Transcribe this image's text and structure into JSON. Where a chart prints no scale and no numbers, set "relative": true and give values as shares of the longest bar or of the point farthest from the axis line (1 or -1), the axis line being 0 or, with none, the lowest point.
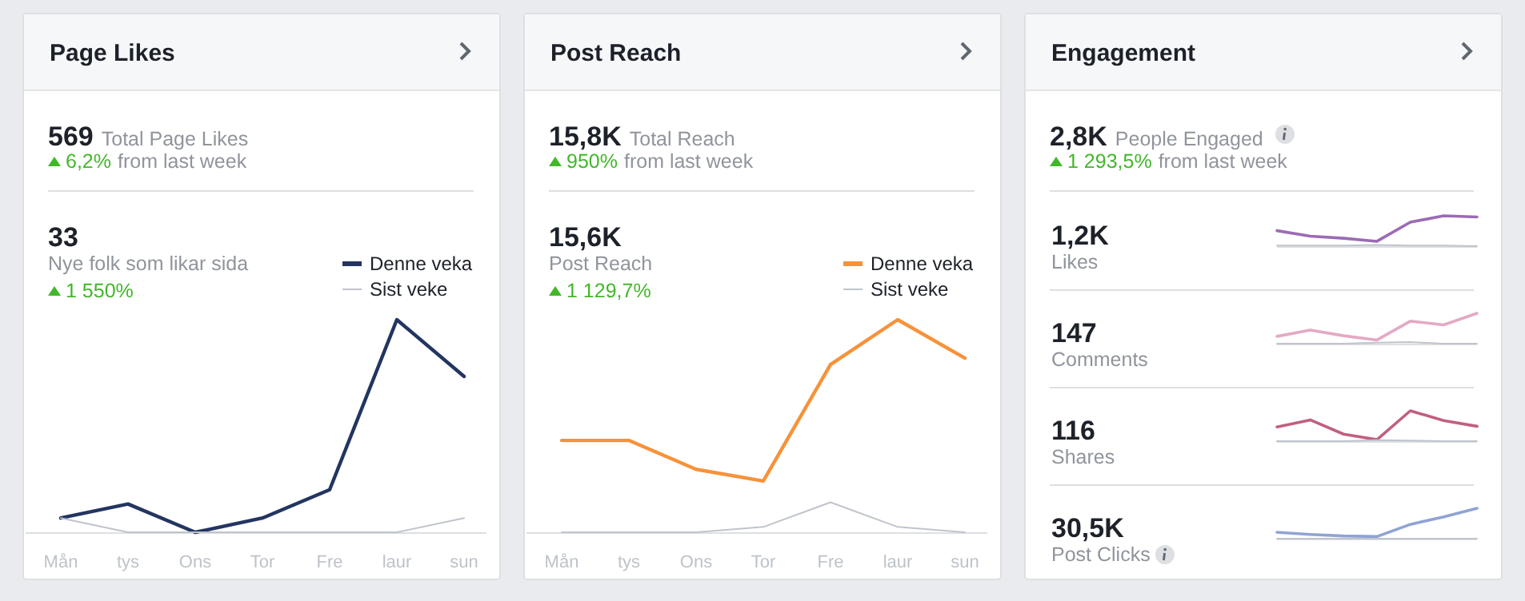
{
  "chart_data": [
    {
      "type": "line",
      "title": "Page Likes",
      "relative": true,
      "legend": "top right",
      "categories": [
        "Mån",
        "tys",
        "Ons",
        "Tor",
        "Fre",
        "laur",
        "sun"
      ],
      "series": [
        {
          "name": "Denne veka",
          "color": "#233560",
          "values": [
            0.067,
            0.133,
            0,
            0.067,
            0.2,
            1,
            0.733
          ]
        },
        {
          "name": "Sist veke",
          "color": "#c0c4cc",
          "values": [
            0.067,
            0,
            0,
            0,
            0,
            0,
            0.067
          ]
        }
      ],
      "annotations": [
        "569",
        "Total Page Likes",
        "6,2%",
        "from last week",
        "33",
        "Nye folk som likar sida",
        "1 550%"
      ]
    },
    {
      "type": "line",
      "title": "Post Reach",
      "relative": true,
      "legend": "top right",
      "categories": [
        "Mån",
        "tys",
        "Ons",
        "Tor",
        "Fre",
        "laur",
        "sun"
      ],
      "series": [
        {
          "name": "Denne veka",
          "color": "#f7923a",
          "values": [
            0.432,
            0.432,
            0.296,
            0.241,
            0.789,
            1,
            0.819
          ]
        },
        {
          "name": "Sist veke",
          "color": "#c0c4cc",
          "values": [
            0,
            0,
            0,
            0.025,
            0.141,
            0.025,
            0
          ]
        }
      ],
      "annotations": [
        "15,8K",
        "Total Reach",
        "950%",
        "from last week",
        "15,6K",
        "Post Reach",
        "1 129,7%"
      ]
    },
    {
      "type": "other",
      "title": "Engagement",
      "annotations": [
        "2,8K",
        "People Engaged",
        "1 293,5%",
        "from last week"
      ]
    },
    {
      "type": "line",
      "relative": true,
      "categories": [
        null,
        null,
        null,
        null,
        null,
        null,
        null
      ],
      "series": [
        {
          "color": "#9b6bb5",
          "values": [
            0.51,
            0.33,
            0.26,
            0.16,
            0.79,
            1,
            0.96
          ]
        },
        {
          "color": "#c0c4cc",
          "values": [
            0.02,
            0.02,
            0.02,
            0.04,
            0.02,
            0.02,
            0
          ]
        }
      ],
      "annotations": [
        "1,2K",
        "Likes"
      ]
    },
    {
      "type": "line",
      "relative": true,
      "categories": [
        null,
        null,
        null,
        null,
        null,
        null,
        null
      ],
      "series": [
        {
          "color": "#e4a9c4",
          "values": [
            0.24,
            0.45,
            0.26,
            0.12,
            0.74,
            0.62,
            1
          ]
        },
        {
          "color": "#c0c4cc",
          "values": [
            0,
            0,
            0,
            0.03,
            0.05,
            0,
            0
          ]
        }
      ],
      "annotations": [
        "147",
        "Comments"
      ]
    },
    {
      "type": "line",
      "relative": true,
      "categories": [
        null,
        null,
        null,
        null,
        null,
        null,
        null
      ],
      "series": [
        {
          "color": "#c0607f",
          "values": [
            0.47,
            0.7,
            0.23,
            0.05,
            1,
            0.68,
            0.49
          ]
        },
        {
          "color": "#c0c4cc",
          "values": [
            0,
            0,
            0,
            0.03,
            0.02,
            0,
            0
          ]
        }
      ],
      "annotations": [
        "116",
        "Shares"
      ]
    },
    {
      "type": "line",
      "relative": true,
      "categories": [
        null,
        null,
        null,
        null,
        null,
        null,
        null
      ],
      "series": [
        {
          "color": "#8fa3d4",
          "values": [
            0.21,
            0.14,
            0.09,
            0.07,
            0.47,
            0.72,
            1
          ]
        },
        {
          "color": "#c0c4cc",
          "values": [
            0,
            0,
            0,
            0,
            0,
            0,
            0
          ]
        }
      ],
      "annotations": [
        "30,5K",
        "Post Clicks"
      ]
    }
  ]
}
